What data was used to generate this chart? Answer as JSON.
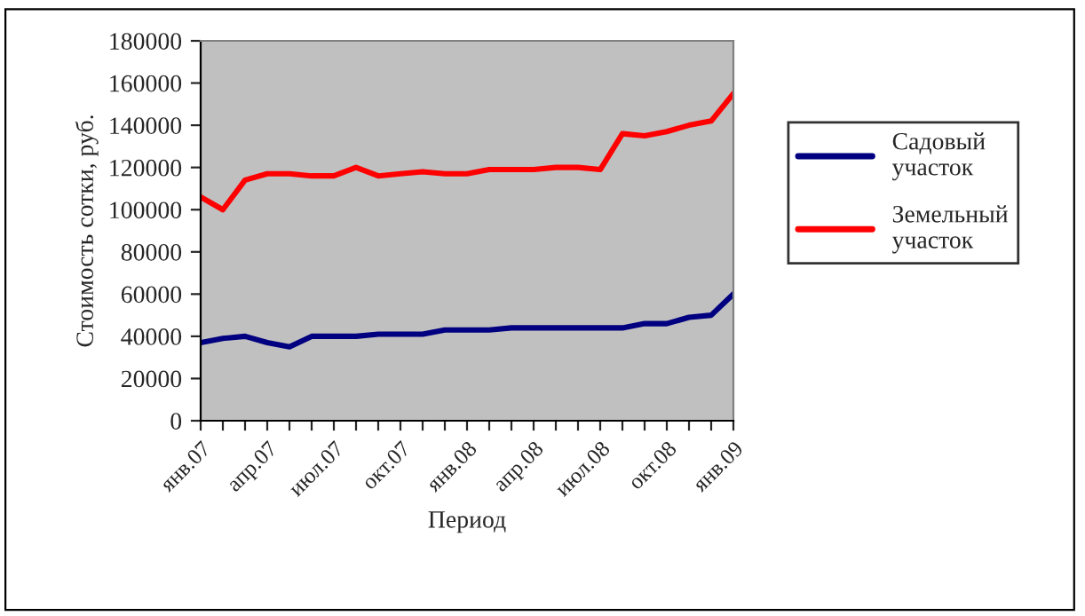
{
  "chart_data": {
    "type": "line",
    "categories": [
      "янв.07",
      null,
      null,
      "апр.07",
      null,
      null,
      "июл.07",
      null,
      null,
      "окт.07",
      null,
      null,
      "янв.08",
      null,
      null,
      "апр.08",
      null,
      null,
      "июл.08",
      null,
      null,
      "окт.08",
      null,
      null,
      "янв.09"
    ],
    "series": [
      {
        "name": "Садовый участок",
        "color": "#000080",
        "values": [
          37000,
          39000,
          40000,
          37000,
          35000,
          40000,
          40000,
          40000,
          41000,
          41000,
          41000,
          43000,
          43000,
          43000,
          44000,
          44000,
          44000,
          44000,
          44000,
          44000,
          46000,
          46000,
          49000,
          50000,
          60000
        ]
      },
      {
        "name": "Земельный участок",
        "color": "#ff0000",
        "values": [
          106000,
          100000,
          114000,
          117000,
          117000,
          116000,
          116000,
          120000,
          116000,
          117000,
          118000,
          117000,
          117000,
          119000,
          119000,
          119000,
          120000,
          120000,
          119000,
          136000,
          135000,
          137000,
          140000,
          142000,
          155000
        ]
      }
    ],
    "xlabel": "Период",
    "ylabel": "Стоимость сотки, руб.",
    "ylim": [
      0,
      180000
    ],
    "yticks": [
      0,
      20000,
      40000,
      60000,
      80000,
      100000,
      120000,
      140000,
      160000,
      180000
    ],
    "grid": false,
    "legend": "right",
    "marker": "none",
    "line_style": "solid"
  }
}
